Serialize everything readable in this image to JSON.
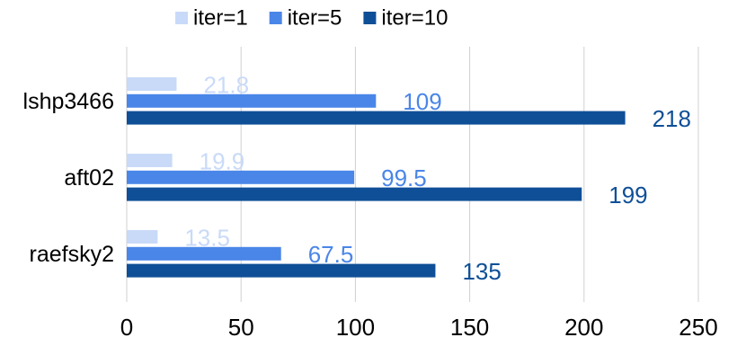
{
  "chart_data": {
    "type": "hbar",
    "categories": [
      "lshp3466",
      "aft02",
      "raefsky2"
    ],
    "series": [
      {
        "name": "iter=1",
        "color": "#c9daf8",
        "values": [
          21.8,
          19.9,
          13.5
        ]
      },
      {
        "name": "iter=5",
        "color": "#4a86e8",
        "values": [
          109,
          99.5,
          67.5
        ]
      },
      {
        "name": "iter=10",
        "color": "#0f4f97",
        "values": [
          218,
          199,
          135
        ]
      }
    ],
    "xlim": [
      0,
      250
    ],
    "xticks": [
      0,
      50,
      100,
      150,
      200,
      250
    ],
    "grid": true,
    "legend": "top"
  }
}
